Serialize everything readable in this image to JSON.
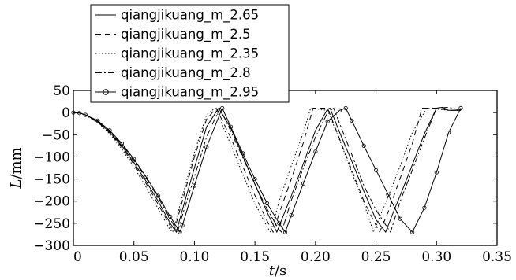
{
  "chart_data": {
    "type": "line",
    "xlabel": {
      "italic": "t",
      "rest": "/s"
    },
    "ylabel": {
      "italic": "L",
      "rest": "/mm"
    },
    "xlim": [
      0,
      0.35
    ],
    "ylim": [
      -300,
      50
    ],
    "xticks": [
      "0",
      "0.05",
      "0.10",
      "0.15",
      "0.20",
      "0.25",
      "0.30",
      "0.35"
    ],
    "yticks": [
      "50",
      "0",
      "−50",
      "−100",
      "−150",
      "−200",
      "−250",
      "−300"
    ],
    "grid": false,
    "legend_position": "top-left-outside",
    "series": [
      {
        "name": "qiangjikuang_m_2.65",
        "style": "solid",
        "x": [
          0,
          0.005,
          0.01,
          0.02,
          0.03,
          0.04,
          0.05,
          0.06,
          0.07,
          0.08,
          0.085,
          0.09,
          0.1,
          0.11,
          0.12,
          0.13,
          0.14,
          0.15,
          0.16,
          0.168,
          0.175,
          0.18,
          0.19,
          0.2,
          0.21,
          0.212,
          0.22,
          0.23,
          0.24,
          0.25,
          0.258,
          0.265,
          0.27,
          0.28,
          0.29,
          0.3,
          0.305,
          0.31,
          0.32
        ],
        "y": [
          0,
          -1,
          -5,
          -20,
          -44,
          -75,
          -113,
          -155,
          -200,
          -250,
          -270,
          -220,
          -125,
          -32,
          10,
          -35,
          -98,
          -162,
          -225,
          -270,
          -222,
          -188,
          -115,
          -40,
          8,
          10,
          -45,
          -110,
          -178,
          -242,
          -270,
          -220,
          -187,
          -118,
          -48,
          10,
          12,
          5,
          5
        ]
      },
      {
        "name": "qiangjikuang_m_2.5",
        "style": "dashed",
        "x": [
          0,
          0.005,
          0.01,
          0.02,
          0.03,
          0.04,
          0.05,
          0.06,
          0.07,
          0.08,
          0.083,
          0.09,
          0.1,
          0.11,
          0.118,
          0.13,
          0.14,
          0.15,
          0.16,
          0.165,
          0.17,
          0.18,
          0.19,
          0.198,
          0.21,
          0.22,
          0.23,
          0.24,
          0.25,
          0.253,
          0.26,
          0.27,
          0.28,
          0.288,
          0.3,
          0.31,
          0.32
        ],
        "y": [
          0,
          -1,
          -5,
          -21,
          -46,
          -78,
          -117,
          -160,
          -207,
          -256,
          -270,
          -200,
          -100,
          -15,
          10,
          -57,
          -122,
          -187,
          -245,
          -270,
          -228,
          -150,
          -68,
          10,
          10,
          -60,
          -130,
          -200,
          -255,
          -270,
          -225,
          -148,
          -70,
          10,
          10,
          5,
          5
        ]
      },
      {
        "name": "qiangjikuang_m_2.35",
        "style": "dotted",
        "x": [
          0,
          0.005,
          0.01,
          0.02,
          0.03,
          0.04,
          0.05,
          0.06,
          0.07,
          0.08,
          0.082,
          0.09,
          0.1,
          0.11,
          0.117,
          0.13,
          0.14,
          0.15,
          0.16,
          0.163,
          0.17,
          0.18,
          0.19,
          0.196,
          0.21,
          0.22,
          0.23,
          0.24,
          0.248,
          0.26,
          0.27,
          0.28,
          0.292,
          0.3,
          0.31,
          0.32
        ],
        "y": [
          0,
          -1,
          -6,
          -22,
          -48,
          -82,
          -123,
          -168,
          -217,
          -265,
          -270,
          -190,
          -90,
          -5,
          10,
          -72,
          -140,
          -205,
          -258,
          -270,
          -200,
          -120,
          -45,
          10,
          5,
          -62,
          -135,
          -205,
          -270,
          -190,
          -120,
          -45,
          10,
          8,
          5,
          5
        ]
      },
      {
        "name": "qiangjikuang_m_2.8",
        "style": "dashdot",
        "x": [
          0,
          0.005,
          0.01,
          0.02,
          0.03,
          0.04,
          0.05,
          0.06,
          0.07,
          0.08,
          0.086,
          0.09,
          0.1,
          0.11,
          0.121,
          0.13,
          0.14,
          0.15,
          0.16,
          0.17,
          0.172,
          0.18,
          0.19,
          0.2,
          0.21,
          0.215,
          0.22,
          0.23,
          0.24,
          0.25,
          0.26,
          0.262,
          0.27,
          0.28,
          0.29,
          0.3,
          0.31,
          0.32
        ],
        "y": [
          0,
          -1,
          -5,
          -19,
          -42,
          -72,
          -108,
          -148,
          -192,
          -240,
          -270,
          -232,
          -145,
          -55,
          10,
          -42,
          -102,
          -162,
          -218,
          -265,
          -270,
          -198,
          -125,
          -55,
          0,
          10,
          -25,
          -95,
          -165,
          -220,
          -262,
          -270,
          -200,
          -130,
          -58,
          10,
          12,
          5
        ]
      },
      {
        "name": "qiangjikuang_m_2.95",
        "style": "circle",
        "x": [
          0,
          0.005,
          0.01,
          0.02,
          0.03,
          0.04,
          0.05,
          0.06,
          0.07,
          0.08,
          0.088,
          0.09,
          0.1,
          0.11,
          0.123,
          0.13,
          0.14,
          0.15,
          0.16,
          0.17,
          0.175,
          0.18,
          0.19,
          0.2,
          0.21,
          0.22,
          0.225,
          0.23,
          0.24,
          0.25,
          0.26,
          0.27,
          0.28,
          0.29,
          0.3,
          0.31,
          0.32
        ],
        "y": [
          0,
          -1,
          -5,
          -18,
          -40,
          -70,
          -105,
          -145,
          -188,
          -235,
          -270,
          -255,
          -165,
          -78,
          10,
          -32,
          -92,
          -150,
          -205,
          -250,
          -270,
          -232,
          -160,
          -88,
          -20,
          5,
          10,
          -18,
          -75,
          -130,
          -185,
          -240,
          -270,
          -215,
          -135,
          -45,
          10
        ]
      }
    ]
  }
}
